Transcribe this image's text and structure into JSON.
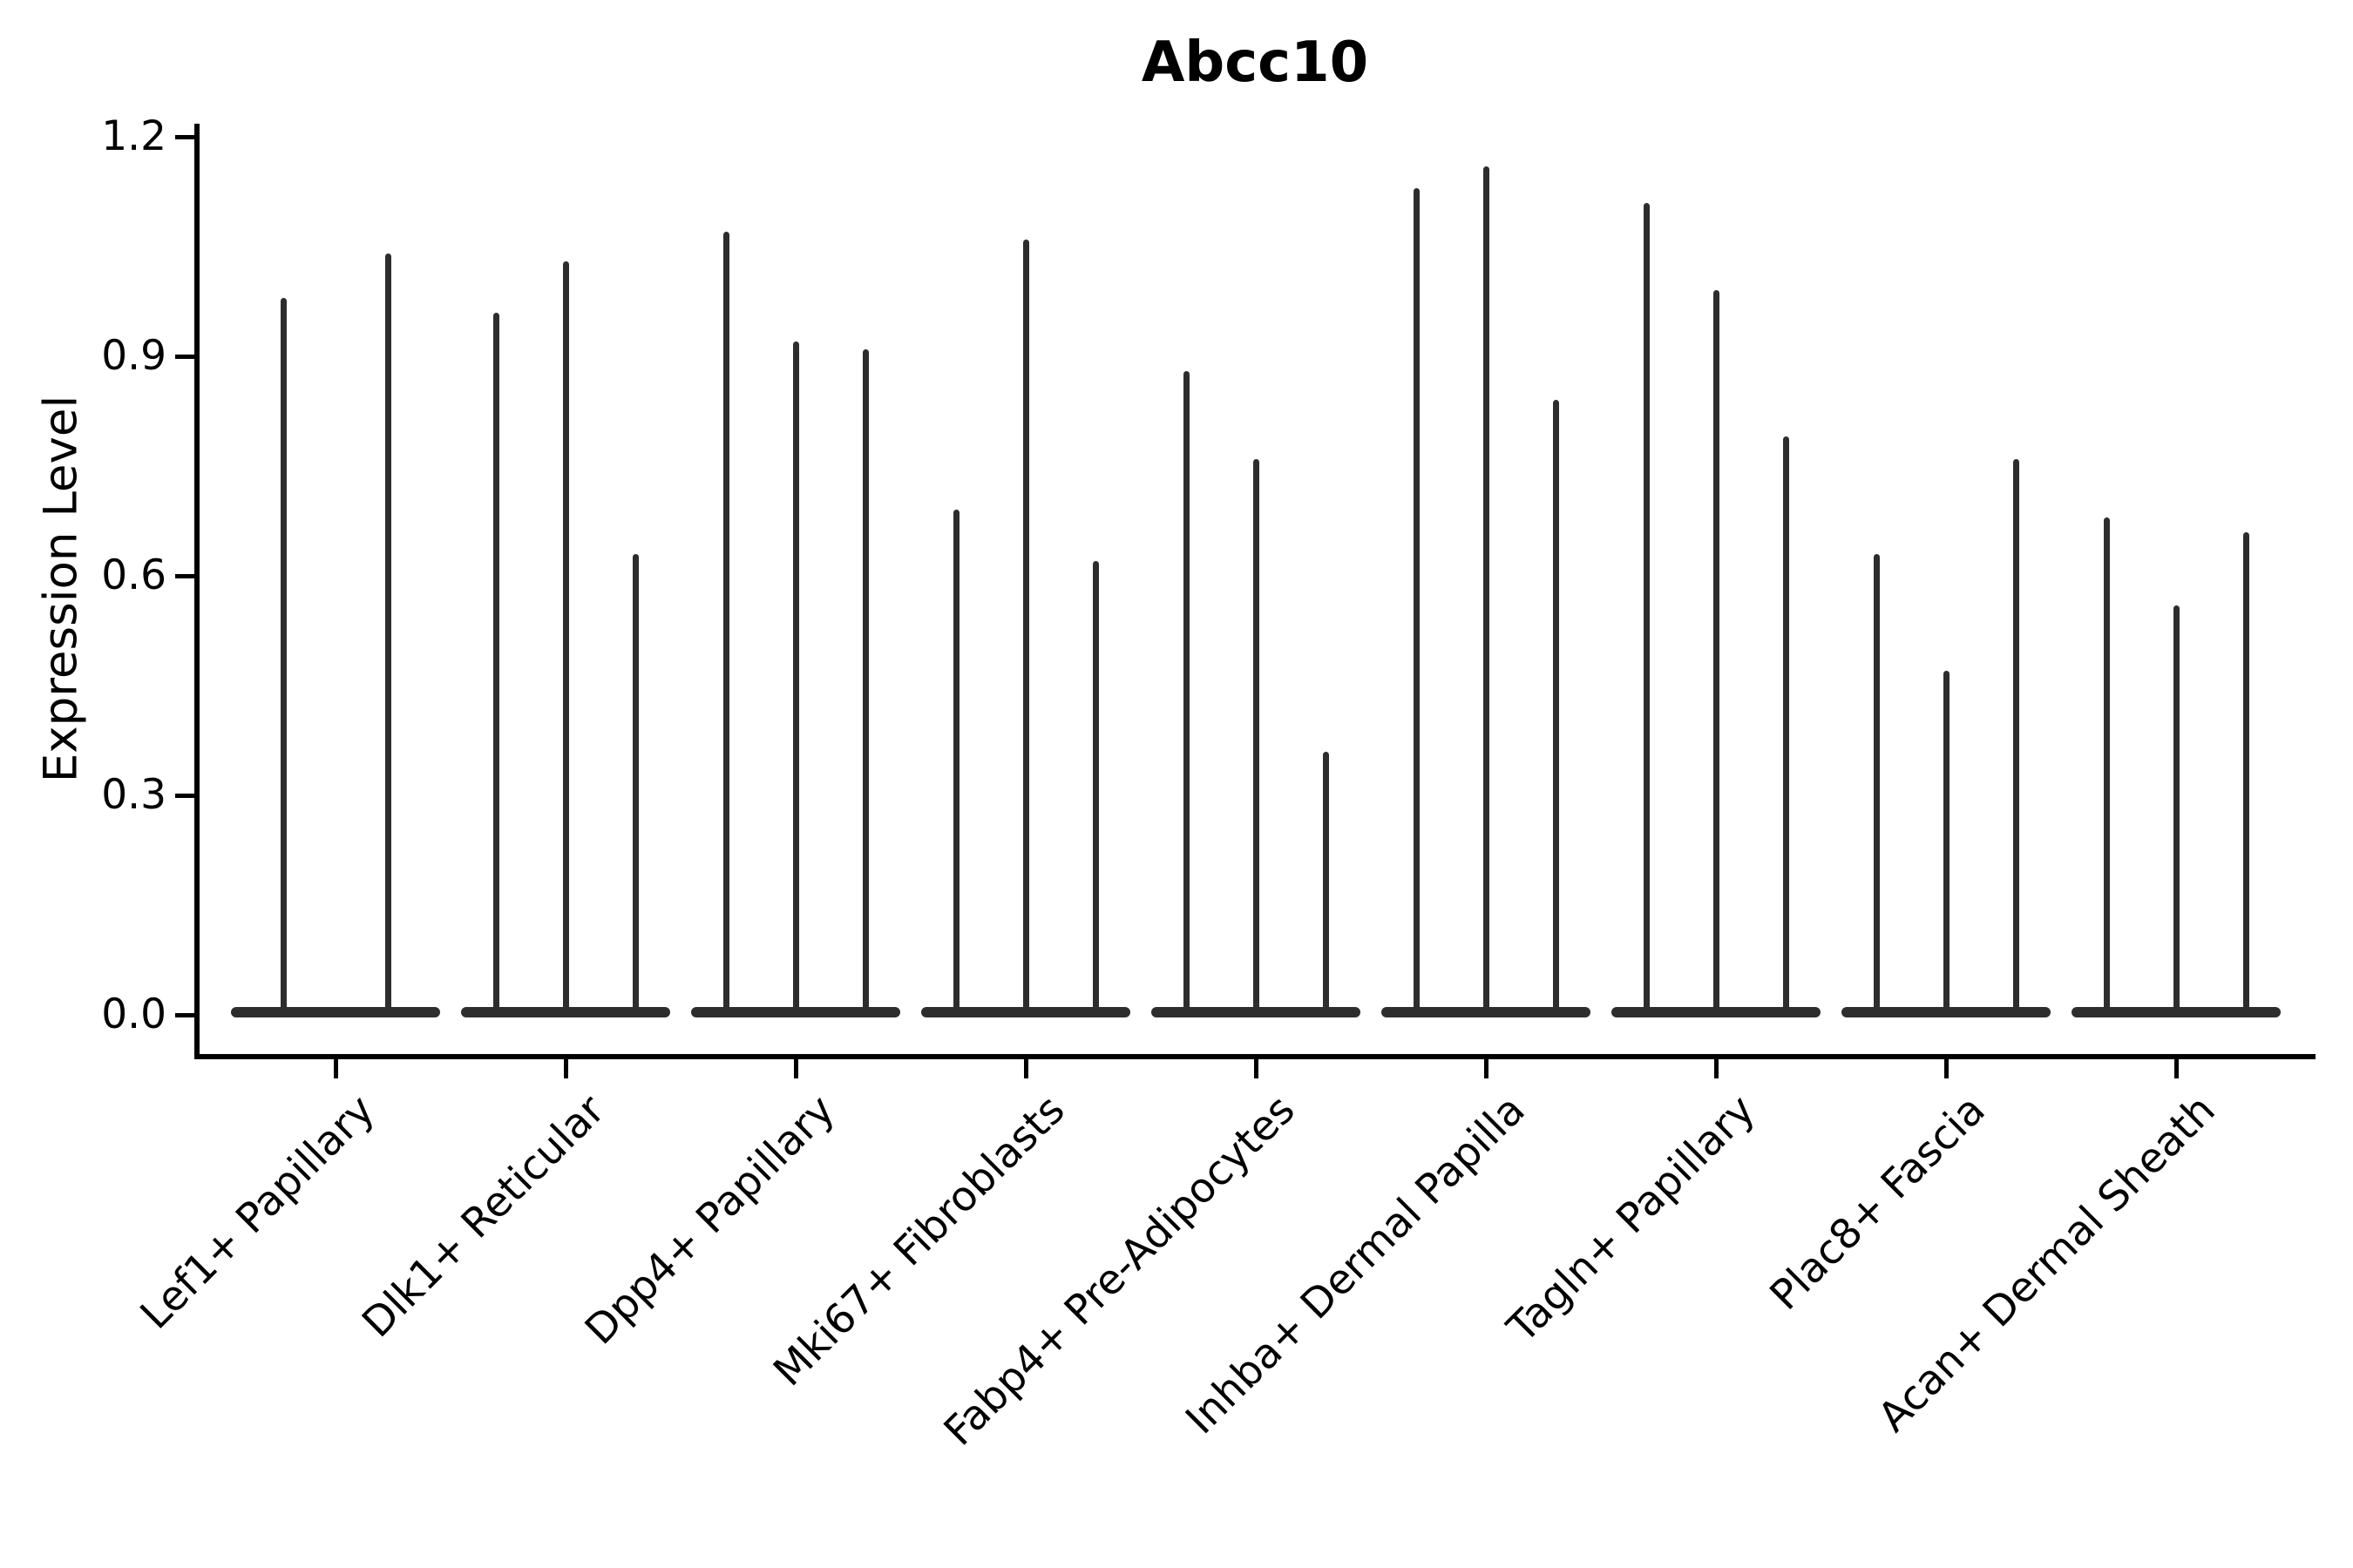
{
  "chart_data": {
    "type": "violin",
    "title": "Abcc10",
    "ylabel": "Expression Level",
    "xlabel": "",
    "ylim": [
      0,
      1.2
    ],
    "yticks": [
      0.0,
      0.3,
      0.6,
      0.9,
      1.2
    ],
    "ytick_labels": [
      "0.0",
      "0.3",
      "0.6",
      "0.9",
      "1.2"
    ],
    "grid": false,
    "legend_position": "none",
    "groups": [
      {
        "category": "Lef1+ Papillary",
        "violins": [
          {
            "offset": -60,
            "max": 0.98
          },
          {
            "offset": 60,
            "max": 1.04
          }
        ]
      },
      {
        "category": "Dlk1+ Reticular",
        "violins": [
          {
            "offset": -80,
            "max": 0.96
          },
          {
            "offset": 0,
            "max": 1.03
          },
          {
            "offset": 80,
            "max": 0.63
          }
        ]
      },
      {
        "category": "Dpp4+ Papillary",
        "violins": [
          {
            "offset": -80,
            "max": 1.07
          },
          {
            "offset": 0,
            "max": 0.92
          },
          {
            "offset": 80,
            "max": 0.91
          }
        ]
      },
      {
        "category": "Mki67+ Fibroblasts",
        "violins": [
          {
            "offset": -80,
            "max": 0.69
          },
          {
            "offset": 0,
            "max": 1.06
          },
          {
            "offset": 80,
            "max": 0.62
          }
        ]
      },
      {
        "category": "Fabp4+ Pre-Adipocytes",
        "violins": [
          {
            "offset": -80,
            "max": 0.88
          },
          {
            "offset": 0,
            "max": 0.76
          },
          {
            "offset": 80,
            "max": 0.36
          }
        ]
      },
      {
        "category": "Inhba+ Dermal Papilla",
        "violins": [
          {
            "offset": -80,
            "max": 1.13
          },
          {
            "offset": 0,
            "max": 1.16
          },
          {
            "offset": 80,
            "max": 0.84
          }
        ]
      },
      {
        "category": "Tagln+ Papillary",
        "violins": [
          {
            "offset": -80,
            "max": 1.11
          },
          {
            "offset": 0,
            "max": 0.99
          },
          {
            "offset": 80,
            "max": 0.79
          }
        ]
      },
      {
        "category": "Plac8+ Fascia",
        "violins": [
          {
            "offset": -80,
            "max": 0.63
          },
          {
            "offset": 0,
            "max": 0.47
          },
          {
            "offset": 80,
            "max": 0.76
          }
        ]
      },
      {
        "category": "Acan+ Dermal Sheath",
        "violins": [
          {
            "offset": -80,
            "max": 0.68
          },
          {
            "offset": 0,
            "max": 0.56
          },
          {
            "offset": 80,
            "max": 0.66
          }
        ]
      }
    ],
    "colors": {
      "violin": "#2d2d2d",
      "axis": "#000000",
      "text": "#000000",
      "background": "#ffffff"
    }
  }
}
